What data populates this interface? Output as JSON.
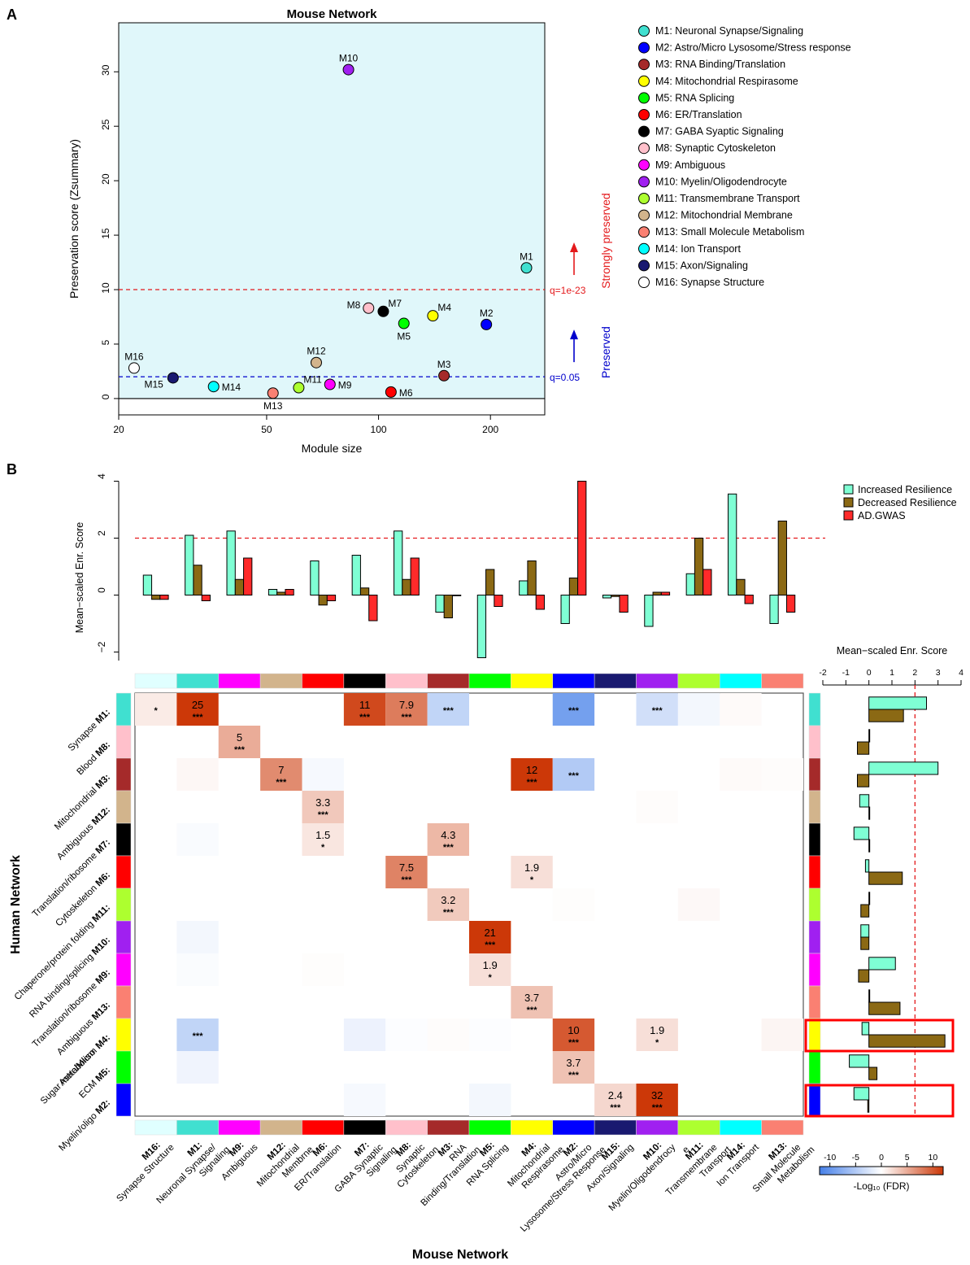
{
  "panel_a_letter": "A",
  "panel_b_letter": "B",
  "chart_data": [
    {
      "type": "scatter",
      "title": "Mouse Network",
      "xlabel": "Module size",
      "ylabel": "Preservation score (Zsummary)",
      "x_scale": "log",
      "xlim": [
        20,
        280
      ],
      "ylim": [
        -1.5,
        34.5
      ],
      "x_ticks": [
        20,
        50,
        100,
        200
      ],
      "y_ticks": [
        0,
        5,
        10,
        15,
        20,
        25,
        30
      ],
      "thresholds": [
        {
          "value": 10,
          "label": "q=1e-23",
          "color": "#e41a1c",
          "annotation": "Strongly preserved"
        },
        {
          "value": 2,
          "label": "q=0.05",
          "color": "#0000cc",
          "annotation": "Preserved"
        }
      ],
      "points": [
        {
          "id": "M1",
          "x": 250,
          "y": 12.0,
          "color": "#40E0D0",
          "legend": "M1: Neuronal Synapse/Signaling",
          "label_pos": "top"
        },
        {
          "id": "M2",
          "x": 195,
          "y": 6.8,
          "color": "#0000FF",
          "legend": "M2: Astro/Micro Lysosome/Stress response",
          "label_pos": "top"
        },
        {
          "id": "M3",
          "x": 150,
          "y": 2.1,
          "color": "#A52A2A",
          "legend": "M3: RNA Binding/Translation",
          "label_pos": "top"
        },
        {
          "id": "M4",
          "x": 140,
          "y": 7.6,
          "color": "#FFFF00",
          "legend": "M4: Mitochondrial Respirasome",
          "label_pos": "topright"
        },
        {
          "id": "M5",
          "x": 117,
          "y": 6.9,
          "color": "#00FF00",
          "legend": "M5: RNA Splicing",
          "label_pos": "bottom"
        },
        {
          "id": "M6",
          "x": 108,
          "y": 0.6,
          "color": "#FF0000",
          "legend": "M6: ER/Translation",
          "label_pos": "right"
        },
        {
          "id": "M7",
          "x": 103,
          "y": 8.0,
          "color": "#000000",
          "legend": "M7: GABA Syaptic Signaling",
          "label_pos": "topright"
        },
        {
          "id": "M8",
          "x": 94,
          "y": 8.3,
          "color": "#FFC0CB",
          "legend": "M8: Synaptic Cytoskeleton",
          "label_pos": "left"
        },
        {
          "id": "M9",
          "x": 74,
          "y": 1.3,
          "color": "#FF00FF",
          "legend": "M9: Ambiguous",
          "label_pos": "right"
        },
        {
          "id": "M10",
          "x": 83,
          "y": 30.2,
          "color": "#A020F0",
          "legend": "M10: Myelin/Oligodendrocyte",
          "label_pos": "top"
        },
        {
          "id": "M11",
          "x": 61,
          "y": 1.0,
          "color": "#ADFF2F",
          "legend": "M11: Transmembrane Transport",
          "label_pos": "topright"
        },
        {
          "id": "M12",
          "x": 68,
          "y": 3.3,
          "color": "#D2B48C",
          "legend": "M12: Mitochondrial Membrane",
          "label_pos": "top"
        },
        {
          "id": "M13",
          "x": 52,
          "y": 0.5,
          "color": "#FA8072",
          "legend": "M13: Small Molecule Metabolism",
          "label_pos": "bottom"
        },
        {
          "id": "M14",
          "x": 36,
          "y": 1.1,
          "color": "#00FFFF",
          "legend": "M14: Ion Transport",
          "label_pos": "right"
        },
        {
          "id": "M15",
          "x": 28,
          "y": 1.9,
          "color": "#191970",
          "legend": "M15: Axon/Signaling",
          "label_pos": "bottomleft"
        },
        {
          "id": "M16",
          "x": 22,
          "y": 2.8,
          "color": "#FFFFFF",
          "legend": "M16: Synapse Structure",
          "label_pos": "top"
        }
      ]
    },
    {
      "type": "bar",
      "ylabel": "Mean−scaled Enr. Score",
      "ylim": [
        -2.3,
        4.1
      ],
      "y_ticks": [
        -2,
        0,
        2,
        4
      ],
      "threshold": 2,
      "categories": [
        "M16",
        "M1",
        "M9",
        "M12",
        "M6",
        "M7",
        "M8",
        "M3",
        "M5",
        "M4",
        "M2",
        "M15",
        "M10",
        "M11",
        "M14",
        "M13"
      ],
      "series": [
        {
          "name": "Increased Resilience",
          "color": "#7FFFD4",
          "values": [
            0.7,
            2.1,
            2.25,
            0.2,
            1.2,
            1.4,
            2.25,
            -0.6,
            -2.2,
            0.5,
            -1.0,
            -0.1,
            -1.1,
            0.75,
            3.55,
            -1.0
          ]
        },
        {
          "name": "Decreased Resilience",
          "color": "#8B6914",
          "values": [
            -0.15,
            1.05,
            0.55,
            0.1,
            -0.35,
            0.25,
            0.55,
            -0.8,
            0.9,
            1.2,
            0.6,
            -0.05,
            0.1,
            2.0,
            0.55,
            2.6
          ]
        },
        {
          "name": "AD.GWAS",
          "color": "#FF2A2A",
          "values": [
            -0.15,
            -0.2,
            1.3,
            0.2,
            -0.2,
            -0.9,
            1.3,
            0.0,
            -0.4,
            -0.5,
            4.0,
            -0.6,
            0.1,
            0.9,
            -0.3,
            -0.6
          ]
        }
      ]
    },
    {
      "type": "heatmap",
      "xlabel": "Mouse Network",
      "ylabel": "Human Network",
      "colorbar_label": "-Log₁₀ (FDR)",
      "colorbar_ticks": [
        -10,
        -5,
        0,
        5,
        10
      ],
      "colorbar_range": [
        -12,
        12
      ],
      "columns": [
        {
          "id": "M16:",
          "name": "Synapse Structure",
          "color": "#E0FFFF"
        },
        {
          "id": "M1:",
          "name": "Neuronal Synapse/ Signaling",
          "color": "#40E0D0"
        },
        {
          "id": "M9:",
          "name": "Ambiguous",
          "color": "#FF00FF"
        },
        {
          "id": "M12:",
          "name": "Mitochondrial Membrne",
          "color": "#D2B48C"
        },
        {
          "id": "M6:",
          "name": "ER/Translation",
          "color": "#FF0000"
        },
        {
          "id": "M7:",
          "name": "GABA Synaptic Signaling",
          "color": "#000000"
        },
        {
          "id": "M8:",
          "name": "Synaptic Cytoskeleton",
          "color": "#FFC0CB"
        },
        {
          "id": "M3:",
          "name": "RNA Binding/Translation",
          "color": "#A52A2A"
        },
        {
          "id": "M5:",
          "name": "RNA Splicing",
          "color": "#00FF00"
        },
        {
          "id": "M4:",
          "name": "Mitochondrial Respirasome",
          "color": "#FFFF00"
        },
        {
          "id": "M2:",
          "name": "Astro/Micro Lysosome/Stress Response",
          "color": "#0000FF"
        },
        {
          "id": "M15:",
          "name": "Axon/Signaling",
          "color": "#191970"
        },
        {
          "id": "M10:",
          "name": "Myelin/Oligodendrocyte",
          "color": "#A020F0"
        },
        {
          "id": "M11:",
          "name": "Transmembrane Transport",
          "color": "#ADFF2F"
        },
        {
          "id": "M14:",
          "name": "Ion Transport",
          "color": "#00FFFF"
        },
        {
          "id": "M13:",
          "name": "Small Molecule Metabolism",
          "color": "#FA8072"
        }
      ],
      "rows": [
        {
          "name": "Synapse",
          "id": "M1:",
          "color": "#40E0D0",
          "inc": 2.5,
          "dec": 1.5
        },
        {
          "name": "Blood",
          "id": "M8:",
          "color": "#FFC0CB",
          "inc": 0.0,
          "dec": -0.5
        },
        {
          "name": "Mitochondrial",
          "id": "M3:",
          "color": "#A52A2A",
          "inc": 3.0,
          "dec": -0.5
        },
        {
          "name": "Ambiguous",
          "id": "M12:",
          "color": "#D2B48C",
          "inc": -0.4,
          "dec": 0.0
        },
        {
          "name": "Translation/ribosome",
          "id": "M7:",
          "color": "#000000",
          "inc": -0.65,
          "dec": 0.0
        },
        {
          "name": "Cytoskeleton",
          "id": "M6:",
          "color": "#FF0000",
          "inc": -0.15,
          "dec": 1.45
        },
        {
          "name": "Chaperone/protein folding",
          "id": "M11:",
          "color": "#ADFF2F",
          "inc": 0.0,
          "dec": -0.35
        },
        {
          "name": "RNA binding/splicing",
          "id": "M10:",
          "color": "#A020F0",
          "inc": -0.35,
          "dec": -0.35
        },
        {
          "name": "Translation/ribosome",
          "id": "M9:",
          "color": "#FF00FF",
          "inc": 1.15,
          "dec": -0.45
        },
        {
          "name": "Ambiguous",
          "id": "M13:",
          "color": "#FA8072",
          "inc": 0.0,
          "dec": 1.35
        },
        {
          "name": "Sugar metabolism",
          "id": "M4:",
          "color": "#FFFF00",
          "inc": -0.3,
          "dec": 3.3
        },
        {
          "name": "ECM",
          "id": "M5:",
          "color": "#00FF00",
          "inc": -0.85,
          "dec": 0.35
        },
        {
          "name": "Myelin/oligo",
          "id": "M2:",
          "color": "#0000FF",
          "inc": -0.65,
          "dec": -0.05
        }
      ],
      "row_extra_label": {
        "row": 10,
        "text": "Astro/Micro"
      },
      "highlighted_rows": [
        10,
        12
      ],
      "cells": [
        {
          "r": 0,
          "c": 0,
          "v": 1.2,
          "label": "",
          "stars": "*"
        },
        {
          "r": 0,
          "c": 1,
          "v": 25,
          "label": "25",
          "stars": "***"
        },
        {
          "r": 0,
          "c": 5,
          "v": 11,
          "label": "11",
          "stars": "***"
        },
        {
          "r": 0,
          "c": 6,
          "v": 7.9,
          "label": "7.9",
          "stars": "***"
        },
        {
          "r": 0,
          "c": 7,
          "v": -4,
          "label": "",
          "stars": "***"
        },
        {
          "r": 0,
          "c": 10,
          "v": -9,
          "label": "",
          "stars": "***"
        },
        {
          "r": 0,
          "c": 12,
          "v": -3,
          "label": "",
          "stars": "***"
        },
        {
          "r": 0,
          "c": 13,
          "v": -0.8,
          "label": "",
          "stars": ""
        },
        {
          "r": 0,
          "c": 14,
          "v": 0.3,
          "label": "",
          "stars": ""
        },
        {
          "r": 1,
          "c": 2,
          "v": 5,
          "label": "5",
          "stars": "***"
        },
        {
          "r": 2,
          "c": 1,
          "v": 0.5,
          "label": "",
          "stars": ""
        },
        {
          "r": 2,
          "c": 3,
          "v": 7,
          "label": "7",
          "stars": "***"
        },
        {
          "r": 2,
          "c": 4,
          "v": -0.6,
          "label": "",
          "stars": ""
        },
        {
          "r": 2,
          "c": 9,
          "v": 12,
          "label": "12",
          "stars": "***"
        },
        {
          "r": 2,
          "c": 10,
          "v": -5,
          "label": "",
          "stars": "***"
        },
        {
          "r": 2,
          "c": 14,
          "v": 0.3,
          "label": "",
          "stars": ""
        },
        {
          "r": 2,
          "c": 15,
          "v": 0.2,
          "label": "",
          "stars": ""
        },
        {
          "r": 3,
          "c": 4,
          "v": 3.3,
          "label": "3.3",
          "stars": "***"
        },
        {
          "r": 3,
          "c": 12,
          "v": 0.2,
          "label": "",
          "stars": ""
        },
        {
          "r": 4,
          "c": 1,
          "v": -0.4,
          "label": "",
          "stars": ""
        },
        {
          "r": 4,
          "c": 4,
          "v": 1.5,
          "label": "1.5",
          "stars": "*"
        },
        {
          "r": 4,
          "c": 7,
          "v": 4.3,
          "label": "4.3",
          "stars": "***"
        },
        {
          "r": 5,
          "c": 6,
          "v": 7.5,
          "label": "7.5",
          "stars": "***"
        },
        {
          "r": 5,
          "c": 9,
          "v": 1.9,
          "label": "1.9",
          "stars": "*"
        },
        {
          "r": 6,
          "c": 7,
          "v": 3.2,
          "label": "3.2",
          "stars": "***"
        },
        {
          "r": 6,
          "c": 10,
          "v": 0.15,
          "label": "",
          "stars": ""
        },
        {
          "r": 6,
          "c": 13,
          "v": 0.4,
          "label": "",
          "stars": ""
        },
        {
          "r": 7,
          "c": 1,
          "v": -0.8,
          "label": "",
          "stars": ""
        },
        {
          "r": 7,
          "c": 8,
          "v": 21,
          "label": "21",
          "stars": "***"
        },
        {
          "r": 8,
          "c": 1,
          "v": -0.3,
          "label": "",
          "stars": ""
        },
        {
          "r": 8,
          "c": 4,
          "v": 0.15,
          "label": "",
          "stars": ""
        },
        {
          "r": 8,
          "c": 8,
          "v": 1.9,
          "label": "1.9",
          "stars": "*"
        },
        {
          "r": 9,
          "c": 9,
          "v": 3.7,
          "label": "3.7",
          "stars": "***"
        },
        {
          "r": 10,
          "c": 1,
          "v": -4,
          "label": "",
          "stars": "***"
        },
        {
          "r": 10,
          "c": 5,
          "v": -1.2,
          "label": "",
          "stars": ""
        },
        {
          "r": 10,
          "c": 6,
          "v": -0.2,
          "label": "",
          "stars": ""
        },
        {
          "r": 10,
          "c": 7,
          "v": 0.2,
          "label": "",
          "stars": ""
        },
        {
          "r": 10,
          "c": 8,
          "v": -0.2,
          "label": "",
          "stars": ""
        },
        {
          "r": 10,
          "c": 10,
          "v": 10,
          "label": "10",
          "stars": "***"
        },
        {
          "r": 10,
          "c": 12,
          "v": 1.9,
          "label": "1.9",
          "stars": "*"
        },
        {
          "r": 10,
          "c": 15,
          "v": 0.6,
          "label": "",
          "stars": ""
        },
        {
          "r": 11,
          "c": 1,
          "v": -1.0,
          "label": "",
          "stars": ""
        },
        {
          "r": 11,
          "c": 10,
          "v": 3.7,
          "label": "3.7",
          "stars": "***"
        },
        {
          "r": 12,
          "c": 5,
          "v": -0.6,
          "label": "",
          "stars": ""
        },
        {
          "r": 12,
          "c": 8,
          "v": -0.8,
          "label": "",
          "stars": ""
        },
        {
          "r": 12,
          "c": 11,
          "v": 2.4,
          "label": "2.4",
          "stars": "***"
        },
        {
          "r": 12,
          "c": 12,
          "v": 32,
          "label": "32",
          "stars": "***"
        }
      ],
      "side_bar_axis": {
        "title": "Mean−scaled Enr. Score",
        "ticks": [
          -2,
          -1,
          0,
          1,
          2,
          3,
          4
        ],
        "threshold": 2
      }
    }
  ]
}
